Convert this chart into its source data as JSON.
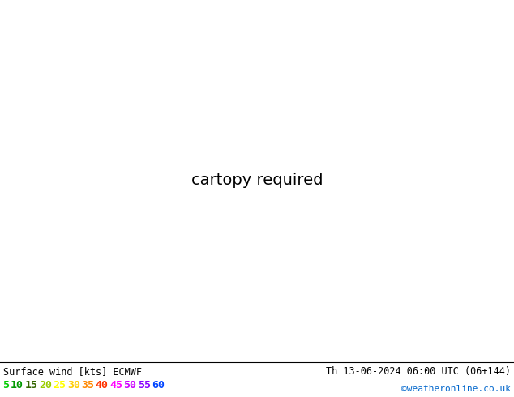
{
  "title_left": "Surface wind [kts] ECMWF",
  "title_right": "Th 13-06-2024 06:00 UTC (06+144)",
  "credit": "©weatheronline.co.uk",
  "legend_values": [
    "5",
    "10",
    "15",
    "20",
    "25",
    "30",
    "35",
    "40",
    "45",
    "50",
    "55",
    "60"
  ],
  "legend_colors_text": [
    "#00cc00",
    "#009900",
    "#336600",
    "#99cc00",
    "#ffff00",
    "#ffcc00",
    "#ff8800",
    "#ff3300",
    "#ff00ff",
    "#cc00ff",
    "#8800ff",
    "#0044ff"
  ],
  "map_extent": [
    0.0,
    40.0,
    53.0,
    72.0
  ],
  "wind_levels": [
    0,
    5,
    10,
    15,
    20,
    25,
    30,
    35,
    40,
    45,
    50,
    55,
    60,
    70
  ],
  "wind_colors": [
    "#f5f5dc",
    "#90ee90",
    "#32cd32",
    "#00aa00",
    "#adff2f",
    "#ffff00",
    "#c8e600",
    "#96d400",
    "#00cccc",
    "#ff00ff",
    "#cc00cc",
    "#8800bb",
    "#0000ff"
  ],
  "barb_color": "#1a1a1a",
  "coast_color": "#1a1a1a",
  "border_color": "#1a1a1a",
  "fig_bg": "#ffffff",
  "bottom_bg": "#ffffff",
  "credit_color": "#0066cc"
}
